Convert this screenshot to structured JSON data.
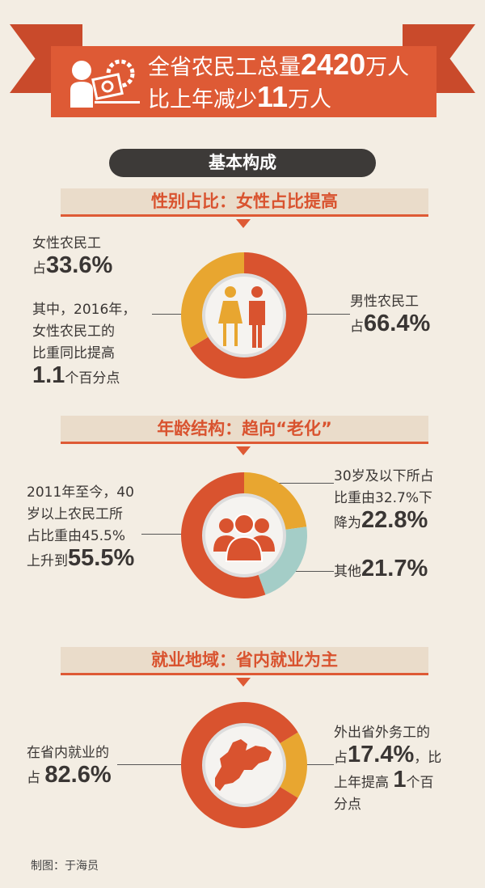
{
  "header": {
    "line1_pre": "全省农民工总量",
    "line1_num": "2420",
    "line1_unit": "万人",
    "line2_pre": "比上年减少",
    "line2_num": "11",
    "line2_unit": "万人",
    "icon": "worker-with-chart-and-gear-icon"
  },
  "section_title": "基本构成",
  "gender": {
    "title": "性别占比：女性占比提高",
    "female_label": "女性农民工",
    "female_prefix": "占",
    "female_value": "33.6%",
    "note_lines": [
      "其中，2016年，",
      "女性农民工的",
      "比重同比提高"
    ],
    "note_num": "1.1",
    "note_suffix": "个百分点",
    "male_label": "男性农民工",
    "male_prefix": "占",
    "male_value": "66.4%",
    "icon": "female-male-icon"
  },
  "age": {
    "title": "年龄结构：趋向“老化”",
    "left_lines": [
      "2011年至今，40",
      "岁以上农民工所",
      "占比重由45.5%"
    ],
    "left_prefix": "上升到",
    "left_value": "55.5%",
    "young_lines": [
      "30岁及以下所占",
      "比重由32.7%下"
    ],
    "young_prefix": "降为",
    "young_value": "22.8%",
    "other_prefix": "其他",
    "other_value": "21.7%",
    "icon": "people-group-icon"
  },
  "region": {
    "title": "就业地域：省内就业为主",
    "in_label": "在省内就业的",
    "in_prefix": "占",
    "in_value": "82.6%",
    "out_label": "外出省外务工的",
    "out_prefix": "占",
    "out_value": "17.4%",
    "out_comma": "，比",
    "out_line3_pre": "上年提高",
    "out_line3_num": "1",
    "out_line3_suf": "个百",
    "out_line4": "分点",
    "icon": "shandong-map-icon"
  },
  "footer": "制图：于海员",
  "colors": {
    "background": "#f3ede3",
    "red": "#d9532f",
    "yellow": "#e8a630",
    "teal": "#a4cdc7",
    "dark": "#3d3a38"
  },
  "chart_data": [
    {
      "type": "pie",
      "title": "性别占比：女性占比提高",
      "categories": [
        "男性农民工",
        "女性农民工"
      ],
      "values": [
        66.4,
        33.6
      ],
      "colors": [
        "#d9532f",
        "#e8a630"
      ],
      "donut": true
    },
    {
      "type": "pie",
      "title": "年龄结构：趋向“老化”",
      "categories": [
        "30岁及以下",
        "其他",
        "40岁以上"
      ],
      "values": [
        22.8,
        21.7,
        55.5
      ],
      "colors": [
        "#e8a630",
        "#a4cdc7",
        "#d9532f"
      ],
      "donut": true
    },
    {
      "type": "pie",
      "title": "就业地域：省内就业为主",
      "categories": [
        "外出省外务工",
        "在省内就业"
      ],
      "values": [
        17.4,
        82.6
      ],
      "colors": [
        "#e8a630",
        "#d9532f"
      ],
      "donut": true,
      "start_angle_deg": 58.7
    }
  ]
}
